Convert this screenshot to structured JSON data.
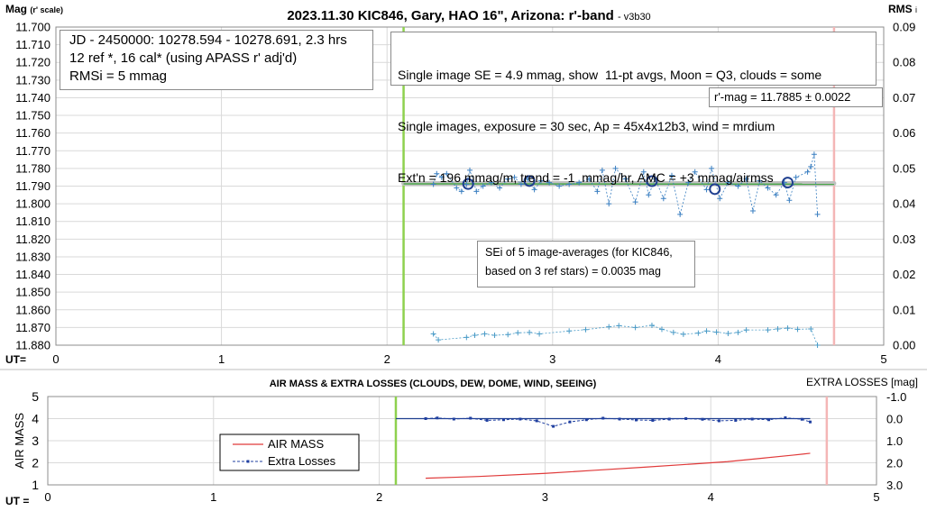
{
  "chart_data": [
    {
      "type": "scatter",
      "title": "2023.11.30 KIC846, Gary, HAO 16\", Arizona: r'-band",
      "subtitle": "- v3b30",
      "ylabel": "Mag",
      "ylabel_unit": "(r' scale)",
      "y2label": "RMS",
      "y2label_suffix": "i",
      "xlabel": "UT=",
      "xlim": [
        0,
        5
      ],
      "ylim": [
        11.88,
        11.7
      ],
      "y2lim": [
        0,
        0.09
      ],
      "x_ticks": [
        "0",
        "1",
        "2",
        "3",
        "4",
        "5"
      ],
      "y_ticks": [
        "11.700",
        "11.710",
        "11.720",
        "11.730",
        "11.740",
        "11.750",
        "11.760",
        "11.770",
        "11.780",
        "11.790",
        "11.800",
        "11.810",
        "11.820",
        "11.830",
        "11.840",
        "11.850",
        "11.860",
        "11.870",
        "11.880"
      ],
      "y2_ticks": [
        "0.00",
        "0.01",
        "0.02",
        "0.03",
        "0.04",
        "0.05",
        "0.06",
        "0.07",
        "0.08",
        "0.09"
      ],
      "grid": true,
      "vlines": [
        {
          "x": 2.1,
          "color": "#8ed14e"
        },
        {
          "x": 4.7,
          "color": "#f4b6b6"
        }
      ],
      "fit_line": {
        "x": [
          2.1,
          4.7
        ],
        "y": [
          11.7885,
          11.7885
        ],
        "color": "#c0c0c0"
      },
      "trend_line": {
        "x": [
          2.1,
          4.7
        ],
        "y": [
          11.7887,
          11.7889
        ],
        "color": "#4aa84a"
      },
      "series": [
        {
          "style": "single-images",
          "color": "#3a7fc1",
          "x": [
            2.28,
            2.3,
            2.33,
            2.36,
            2.42,
            2.45,
            2.48,
            2.5,
            2.54,
            2.58,
            2.63,
            2.68,
            2.73,
            2.77,
            2.81,
            2.85,
            2.89,
            2.93,
            2.98,
            3.04,
            3.1,
            3.16,
            3.22,
            3.27,
            3.3,
            3.34,
            3.38,
            3.44,
            3.5,
            3.55,
            3.58,
            3.62,
            3.67,
            3.72,
            3.77,
            3.82,
            3.86,
            3.93,
            3.96,
            4.01,
            4.06,
            4.12,
            4.17,
            4.21,
            4.25,
            4.3,
            4.35,
            4.4,
            4.43,
            4.47,
            4.54,
            4.56,
            4.58,
            4.6
          ],
          "y": [
            11.789,
            11.783,
            11.785,
            11.783,
            11.791,
            11.793,
            11.789,
            11.781,
            11.793,
            11.79,
            11.788,
            11.791,
            11.786,
            11.785,
            11.789,
            11.786,
            11.792,
            11.787,
            11.788,
            11.79,
            11.789,
            11.788,
            11.786,
            11.793,
            11.781,
            11.8,
            11.78,
            11.786,
            11.799,
            11.782,
            11.795,
            11.786,
            11.797,
            11.784,
            11.806,
            11.788,
            11.782,
            11.792,
            11.78,
            11.797,
            11.788,
            11.79,
            11.786,
            11.804,
            11.787,
            11.791,
            11.795,
            11.788,
            11.798,
            11.785,
            11.782,
            11.779,
            11.772,
            11.806
          ]
        },
        {
          "style": "5-image-averages",
          "color": "#1f3f8f",
          "x": [
            2.49,
            2.86,
            3.6,
            3.98,
            4.42
          ],
          "y": [
            11.7888,
            11.7871,
            11.7872,
            11.7917,
            11.788
          ]
        },
        {
          "style": "rms-i",
          "axis": "right",
          "color": "#4a9bc7",
          "x": [
            2.28,
            2.31,
            2.48,
            2.53,
            2.59,
            2.65,
            2.73,
            2.79,
            2.86,
            2.92,
            3.1,
            3.2,
            3.34,
            3.4,
            3.5,
            3.6,
            3.66,
            3.73,
            3.79,
            3.88,
            3.93,
            3.99,
            4.06,
            4.12,
            4.17,
            4.3,
            4.36,
            4.42,
            4.48,
            4.56,
            4.6
          ],
          "y": [
            0.0032,
            0.0015,
            0.0022,
            0.0028,
            0.0032,
            0.0028,
            0.003,
            0.0035,
            0.0036,
            0.0032,
            0.004,
            0.0044,
            0.0052,
            0.0055,
            0.005,
            0.0056,
            0.0045,
            0.0036,
            0.0031,
            0.0034,
            0.004,
            0.0037,
            0.0033,
            0.0036,
            0.0043,
            0.0043,
            0.0046,
            0.0048,
            0.0045,
            0.0046,
            0.0
          ]
        }
      ],
      "annotations": [
        {
          "lines": [
            "JD - 2450000: 10278.594 - 10278.691, 2.3 hrs",
            "12 ref *, 16 cal* (using APASS r' adj'd)",
            "RMSi = 5 mmag"
          ]
        },
        {
          "lines": [
            "Single image SE = 4.9 mmag, show  11-pt avgs, Moon = Q3, clouds = some",
            "Single images, exposure = 30 sec, Ap = 45x4x12b3, wind = mrdium",
            "Ext'n = 196 mmag/m, trend = -1  mmag/hr, AMC = +3 mmag/airmss"
          ]
        },
        {
          "lines": [
            "r'-mag = 11.7885 ± 0.0022"
          ]
        },
        {
          "lines": [
            "SEi of 5 image-averages (for KIC846,",
            "based on 3 ref stars) = 0.0035 mag"
          ]
        }
      ]
    },
    {
      "type": "line",
      "title": "AIR MASS & EXTRA LOSSES (CLOUDS, DEW, DOME, WIND, SEEING)",
      "ylabel": "AIR MASS",
      "y2label": "EXTRA LOSSES [mag]",
      "xlabel": "UT =",
      "xlim": [
        0,
        5
      ],
      "ylim": [
        1,
        5
      ],
      "y2lim": [
        3.0,
        -1.0
      ],
      "x_ticks": [
        "0",
        "1",
        "2",
        "3",
        "4",
        "5"
      ],
      "y_ticks": [
        "5",
        "4",
        "3",
        "2",
        "1"
      ],
      "y2_ticks": [
        "-1.0",
        "0.0",
        "1.0",
        "2.0",
        "3.0"
      ],
      "grid": true,
      "vlines": [
        {
          "x": 2.1,
          "color": "#8ed14e"
        },
        {
          "x": 4.7,
          "color": "#f4b6b6"
        }
      ],
      "baseline": {
        "x": [
          2.1,
          4.6
        ],
        "y2": 0.0,
        "color": "#1f3f8f"
      },
      "series": [
        {
          "name": "AIR MASS",
          "axis": "left",
          "color": "#e03a3a",
          "x": [
            2.28,
            2.6,
            3.0,
            3.3,
            3.6,
            3.9,
            4.1,
            4.3,
            4.5,
            4.6
          ],
          "y": [
            1.3,
            1.38,
            1.52,
            1.66,
            1.8,
            1.95,
            2.05,
            2.2,
            2.35,
            2.43
          ]
        },
        {
          "name": "Extra Losses",
          "axis": "right",
          "color": "#1f3fa0",
          "x": [
            2.28,
            2.35,
            2.45,
            2.55,
            2.65,
            2.75,
            2.85,
            2.95,
            3.05,
            3.15,
            3.25,
            3.35,
            3.45,
            3.55,
            3.65,
            3.75,
            3.85,
            3.95,
            4.05,
            4.15,
            4.25,
            4.35,
            4.45,
            4.55,
            4.6
          ],
          "y": [
            0.0,
            -0.03,
            0.02,
            -0.02,
            0.08,
            0.05,
            0.02,
            0.1,
            0.35,
            0.15,
            0.05,
            -0.02,
            0.02,
            0.06,
            0.08,
            0.02,
            0.0,
            0.03,
            0.1,
            0.08,
            0.02,
            0.05,
            -0.04,
            0.03,
            0.15
          ]
        }
      ]
    }
  ]
}
